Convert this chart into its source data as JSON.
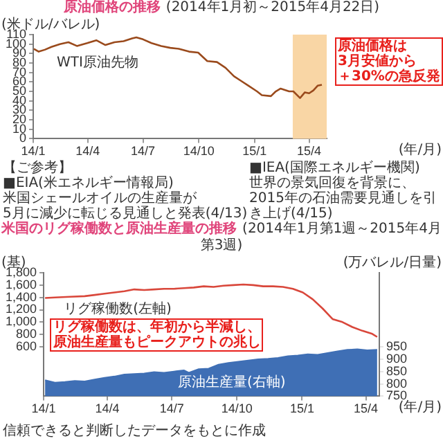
{
  "chart_data": [
    {
      "type": "line",
      "title": "原油価格の推移",
      "subtitle": "(2014年1月初～2015年4月22日)",
      "ylabel": "(米ドル/バレル)",
      "xlabel": "(年/月)",
      "x": [
        "2014-01-02",
        "2014-01-10",
        "2014-01-20",
        "2014-01-31",
        "2014-02-14",
        "2014-02-28",
        "2014-03-14",
        "2014-03-31",
        "2014-04-15",
        "2014-04-30",
        "2014-05-15",
        "2014-05-30",
        "2014-06-13",
        "2014-06-20",
        "2014-07-01",
        "2014-07-15",
        "2014-07-31",
        "2014-08-15",
        "2014-08-29",
        "2014-09-15",
        "2014-09-30",
        "2014-10-15",
        "2014-10-31",
        "2014-11-14",
        "2014-11-28",
        "2014-12-10",
        "2014-12-22",
        "2015-01-05",
        "2015-01-13",
        "2015-01-28",
        "2015-02-05",
        "2015-02-13",
        "2015-02-27",
        "2015-03-06",
        "2015-03-17",
        "2015-03-25",
        "2015-04-01",
        "2015-04-08",
        "2015-04-15",
        "2015-04-22"
      ],
      "series": [
        {
          "name": "WTI原油先物",
          "color": "#9a4a1c",
          "values": [
            95,
            92,
            94,
            97,
            100,
            102,
            98,
            101,
            104,
            99,
            102,
            103,
            106,
            107,
            105,
            101,
            98,
            96,
            95,
            92,
            91,
            82,
            81,
            75,
            66,
            61,
            56,
            50,
            46,
            45,
            50,
            53,
            50,
            50,
            43,
            49,
            48,
            51,
            56,
            57
          ]
        }
      ],
      "xlim": [
        "2014-01-01",
        "2015-04-30"
      ],
      "xticks": [
        {
          "value": "2014-01-01",
          "label": "14/1"
        },
        {
          "value": "2014-04-01",
          "label": "14/4"
        },
        {
          "value": "2014-07-01",
          "label": "14/7"
        },
        {
          "value": "2014-10-01",
          "label": "14/10"
        },
        {
          "value": "2015-01-01",
          "label": "15/1"
        },
        {
          "value": "2015-04-01",
          "label": "15/4"
        }
      ],
      "ylim": [
        0,
        110
      ],
      "yticks": [
        0,
        10,
        20,
        30,
        40,
        50,
        60,
        70,
        80,
        90,
        100,
        110
      ],
      "bands": [
        {
          "axis": "x",
          "from": "2015-03-05",
          "to": "2015-04-30",
          "color": "#f9d6a5"
        }
      ],
      "annotations": [
        "原油価格は",
        "3月安値から",
        "＋30%の急反発",
        "【ご参考】",
        "■EIA(米エネルギー情報局)",
        "米国シェールオイルの生産量が",
        "5月に減少に転じる見通しと発表(4/13)",
        "■IEA(国際エネルギー機関)",
        "世界の景気回復を背景に、",
        "2015年の石油需要見通しを引き上げ(4/15)"
      ]
    },
    {
      "type": "line",
      "title": "米国のリグ稼働数と原油生産量の推移",
      "subtitle": "(2014年1月第1週～2015年4月第3週)",
      "ylabel": "(基)",
      "y2label": "(万バレル/日量)",
      "xlabel": "(年/月)",
      "series": [
        {
          "name": "リグ稼働数(左軸)",
          "type": "line",
          "color": "#d9473b",
          "x": [
            "2014-01-03",
            "2014-01-17",
            "2014-02-07",
            "2014-02-28",
            "2014-03-14",
            "2014-03-28",
            "2014-04-11",
            "2014-04-25",
            "2014-05-09",
            "2014-05-23",
            "2014-06-06",
            "2014-06-20",
            "2014-07-04",
            "2014-07-18",
            "2014-08-01",
            "2014-08-15",
            "2014-08-29",
            "2014-09-12",
            "2014-09-26",
            "2014-10-10",
            "2014-10-24",
            "2014-11-07",
            "2014-11-21",
            "2014-12-05",
            "2014-12-19",
            "2015-01-02",
            "2015-01-16",
            "2015-01-30",
            "2015-02-13",
            "2015-02-27",
            "2015-03-13",
            "2015-03-27",
            "2015-04-10",
            "2015-04-17"
          ],
          "values": [
            1390,
            1400,
            1410,
            1420,
            1440,
            1460,
            1480,
            1500,
            1530,
            1520,
            1530,
            1540,
            1540,
            1550,
            1560,
            1580,
            1570,
            1590,
            1600,
            1610,
            1600,
            1580,
            1580,
            1570,
            1540,
            1480,
            1370,
            1220,
            1050,
            1000,
            920,
            860,
            810,
            760
          ]
        },
        {
          "name": "原油生産量(右軸)",
          "type": "area",
          "axis": "y2",
          "color": "#3f6fb5",
          "x": [
            "2014-01-03",
            "2014-01-17",
            "2014-01-31",
            "2014-02-14",
            "2014-02-28",
            "2014-03-14",
            "2014-03-28",
            "2014-04-11",
            "2014-04-25",
            "2014-05-09",
            "2014-05-23",
            "2014-06-06",
            "2014-06-20",
            "2014-07-04",
            "2014-07-18",
            "2014-07-25",
            "2014-08-08",
            "2014-08-22",
            "2014-09-05",
            "2014-09-19",
            "2014-10-03",
            "2014-10-17",
            "2014-10-31",
            "2014-11-14",
            "2014-11-28",
            "2014-12-12",
            "2014-12-26",
            "2015-01-09",
            "2015-01-23",
            "2015-02-06",
            "2015-02-20",
            "2015-03-06",
            "2015-03-20",
            "2015-04-03",
            "2015-04-17"
          ],
          "values": [
            815,
            805,
            808,
            812,
            810,
            818,
            825,
            830,
            838,
            840,
            842,
            848,
            845,
            850,
            855,
            845,
            860,
            862,
            878,
            885,
            890,
            895,
            900,
            902,
            905,
            912,
            915,
            920,
            918,
            925,
            932,
            938,
            940,
            936,
            938
          ]
        }
      ],
      "xlim": [
        "2014-01-01",
        "2015-04-20"
      ],
      "xticks": [
        {
          "value": "2014-01-01",
          "label": "14/1"
        },
        {
          "value": "2014-04-01",
          "label": "14/4"
        },
        {
          "value": "2014-07-01",
          "label": "14/7"
        },
        {
          "value": "2014-10-01",
          "label": "14/10"
        },
        {
          "value": "2015-01-01",
          "label": "15/1"
        },
        {
          "value": "2015-04-01",
          "label": "15/4"
        }
      ],
      "ylim": [
        -200,
        1800
      ],
      "yticks": [
        600,
        800,
        {
          "value": 1000,
          "label": "1,000"
        },
        {
          "value": 1200,
          "label": "1,200"
        },
        {
          "value": 1400,
          "label": "1,400"
        },
        {
          "value": 1600,
          "label": "1,600"
        },
        {
          "value": 1800,
          "label": "1,800"
        }
      ],
      "y2lim": [
        750,
        1250
      ],
      "y2ticks": [
        750,
        800,
        850,
        900,
        950
      ],
      "annotations": [
        "リグ稼働数は、年初から半減し、",
        "原油生産量もピークアウトの兆し",
        "信頼できると判断したデータをもとに作成"
      ]
    }
  ]
}
